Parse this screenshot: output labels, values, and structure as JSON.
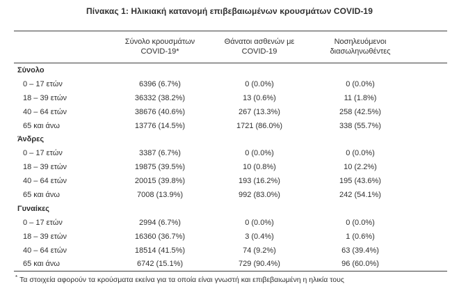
{
  "title": "Πίνακας 1: Ηλικιακή κατανομή επιβεβαιωμένων κρουσμάτων COVID-19",
  "table": {
    "header": {
      "cases_line1": "Σύνολο κρουσμάτων",
      "cases_line2": "COVID-19*",
      "deaths_line1": "Θάνατοι ασθενών με",
      "deaths_line2": "COVID-19",
      "intubated_line1": "Νοσηλευόμενοι",
      "intubated_line2": "διασωληνωθέντες"
    },
    "sections": [
      {
        "label": "Σύνολο",
        "rows": [
          {
            "age": "0 – 17 ετών",
            "cases": "6396 (6.7%)",
            "deaths": "0 (0.0%)",
            "intubated": "0 (0.0%)"
          },
          {
            "age": "18 – 39 ετών",
            "cases": "36332 (38.2%)",
            "deaths": "13 (0.6%)",
            "intubated": "11 (1.8%)"
          },
          {
            "age": "40 – 64 ετών",
            "cases": "38676 (40.6%)",
            "deaths": "267 (13.3%)",
            "intubated": "258 (42.5%)"
          },
          {
            "age": "65 και άνω",
            "cases": "13776 (14.5%)",
            "deaths": "1721 (86.0%)",
            "intubated": "338 (55.7%)"
          }
        ]
      },
      {
        "label": "Άνδρες",
        "rows": [
          {
            "age": "0 – 17 ετών",
            "cases": "3387 (6.7%)",
            "deaths": "0 (0.0%)",
            "intubated": "0 (0.0%)"
          },
          {
            "age": "18 – 39 ετών",
            "cases": "19875 (39.5%)",
            "deaths": "10 (0.8%)",
            "intubated": "10 (2.2%)"
          },
          {
            "age": "40 – 64 ετών",
            "cases": "20015 (39.8%)",
            "deaths": "193 (16.2%)",
            "intubated": "195 (43.6%)"
          },
          {
            "age": "65 και άνω",
            "cases": "7008 (13.9%)",
            "deaths": "992 (83.0%)",
            "intubated": "242 (54.1%)"
          }
        ]
      },
      {
        "label": "Γυναίκες",
        "rows": [
          {
            "age": "0 – 17 ετών",
            "cases": "2994 (6.7%)",
            "deaths": "0 (0.0%)",
            "intubated": "0 (0.0%)"
          },
          {
            "age": "18 – 39 ετών",
            "cases": "16360 (36.7%)",
            "deaths": "3 (0.4%)",
            "intubated": "1 (0.6%)"
          },
          {
            "age": "40 – 64 ετών",
            "cases": "18514 (41.5%)",
            "deaths": "74 (9.2%)",
            "intubated": "63 (39.4%)"
          },
          {
            "age": "65 και άνω",
            "cases": "6742 (15.1%)",
            "deaths": "729 (90.4%)",
            "intubated": "96 (60.0%)"
          }
        ]
      }
    ],
    "footnote_marker": "*",
    "footnote": "Τα στοιχεία αφορούν τα κρούσματα εκείνα για τα οποία είναι γνωστή και επιβεβαιωμένη η ηλικία τους"
  },
  "colors": {
    "text": "#2f2f2f",
    "rule": "#3d3d3d",
    "background": "#ffffff"
  }
}
